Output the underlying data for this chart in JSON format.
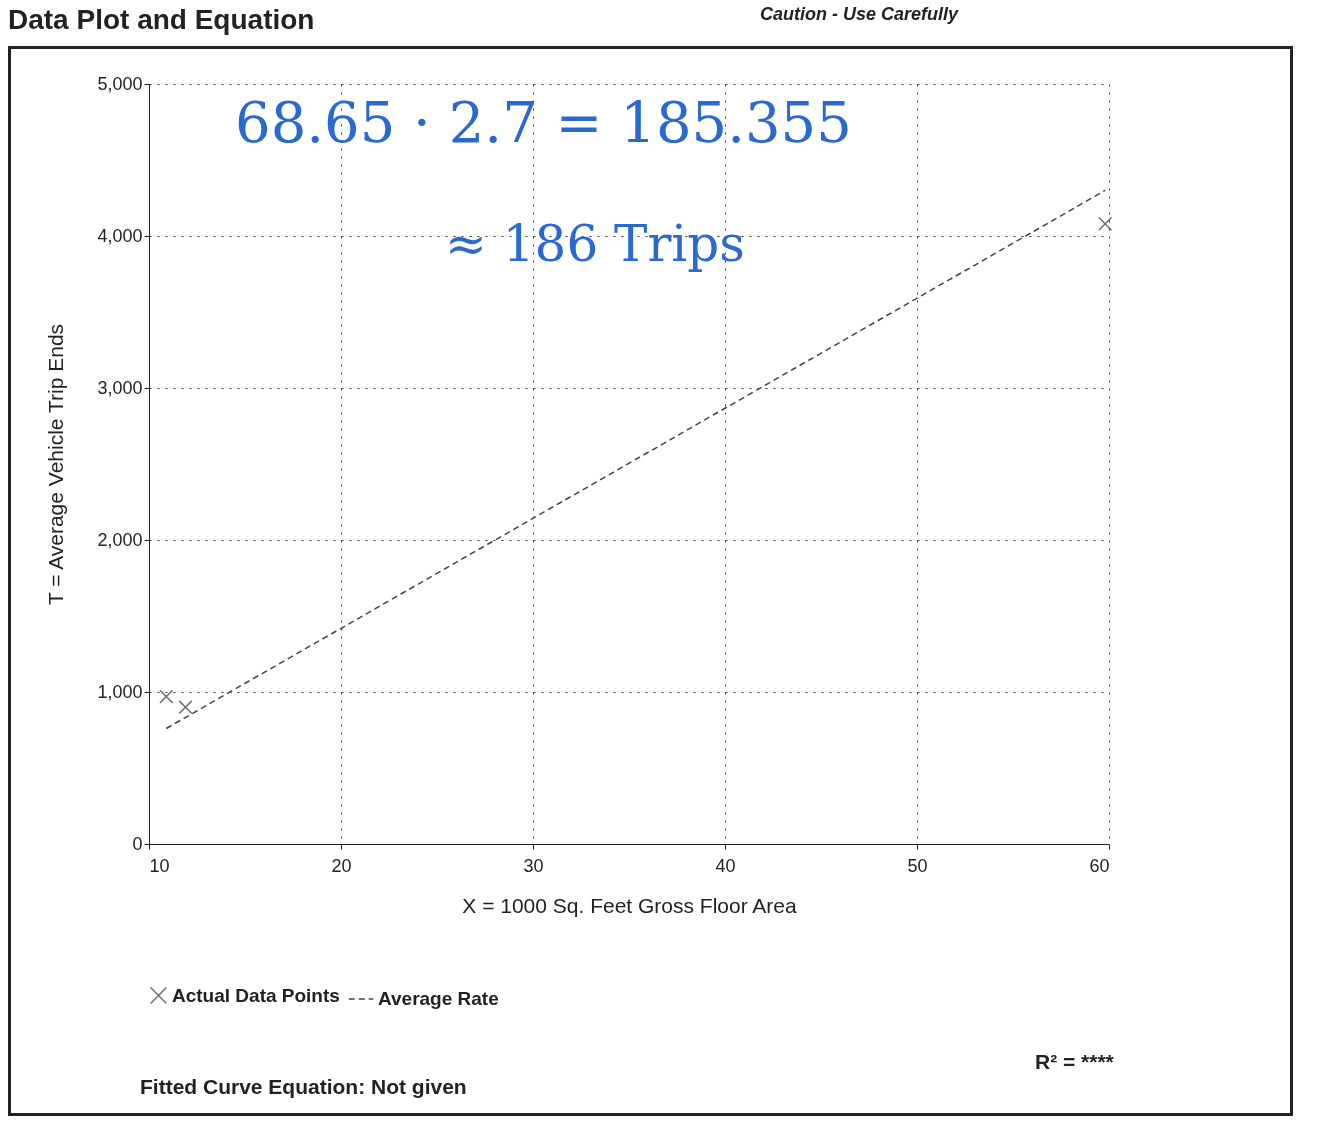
{
  "chart_data": {
    "type": "scatter",
    "title": "Data Plot and Equation",
    "xlabel": "X = 1000 Sq. Feet Gross Floor Area",
    "ylabel": "T = Average Vehicle Trip Ends",
    "series": [
      {
        "name": "Actual Data Points",
        "color": "#333333",
        "marker": "cross",
        "x": [
          10.9,
          11.9,
          59.8
        ],
        "values": [
          970,
          900,
          4080
        ]
      },
      {
        "name": "Average Rate",
        "type": "line",
        "color": "#444444",
        "line_style": "dashed",
        "marker": "none",
        "x": [
          10.9,
          59.8
        ],
        "values": [
          760,
          4300
        ]
      }
    ],
    "xlim": [
      10,
      60
    ],
    "xticks": [
      10,
      20,
      30,
      40,
      50,
      60
    ],
    "ylim": [
      0,
      5000
    ],
    "yticks": [
      {
        "value": 0,
        "label": "0"
      },
      {
        "value": 1000,
        "label": "1,000"
      },
      {
        "value": 2000,
        "label": "2,000"
      },
      {
        "value": 3000,
        "label": "3,000"
      },
      {
        "value": 4000,
        "label": "4,000"
      },
      {
        "value": 5000,
        "label": "5,000"
      }
    ],
    "grid": true,
    "legend": "bottom",
    "annotations": [
      "Caution - Use Carefully",
      "68.65 · 2.7 = 185.355",
      "≈ 186 Trips",
      "Fitted Curve Equation:  Not given",
      "R² = ****"
    ]
  }
}
